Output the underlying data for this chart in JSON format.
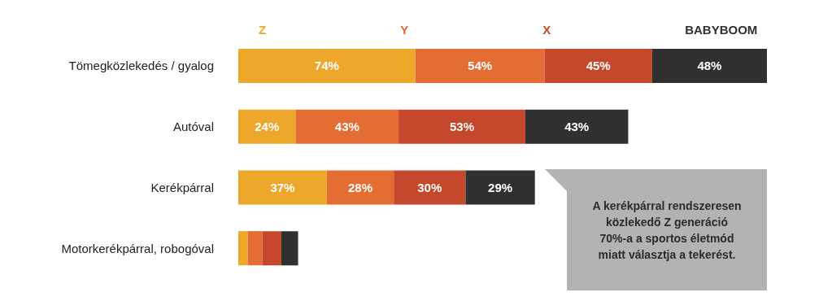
{
  "chart_data": {
    "type": "bar",
    "orientation": "horizontal",
    "stacked": true,
    "legend": "top",
    "categories": [
      "Tömegközlekedés / gyalog",
      "Autóval",
      "Kerékpárral",
      "Motorkerékpárral, robogóval"
    ],
    "series": [
      {
        "name": "Z",
        "color": "#eda82b",
        "values": [
          74,
          24,
          37,
          4
        ],
        "value_labels": [
          "74%",
          "24%",
          "37%",
          null
        ]
      },
      {
        "name": "Y",
        "color": "#e46d33",
        "values": [
          54,
          43,
          28,
          6
        ],
        "value_labels": [
          "54%",
          "43%",
          "28%",
          null
        ]
      },
      {
        "name": "X",
        "color": "#c5472c",
        "values": [
          45,
          53,
          30,
          8
        ],
        "value_labels": [
          "45%",
          "53%",
          "30%",
          null
        ]
      },
      {
        "name": "BABYBOOM",
        "color": "#303030",
        "values": [
          48,
          43,
          29,
          7
        ],
        "value_labels": [
          "48%",
          "43%",
          "29%",
          null
        ]
      }
    ],
    "annotations": [
      "A kerékpárral rendszeresen\nközlekedő Z generáció\n70%-a a sportos életmód\nmiatt választja a tekerést."
    ]
  }
}
